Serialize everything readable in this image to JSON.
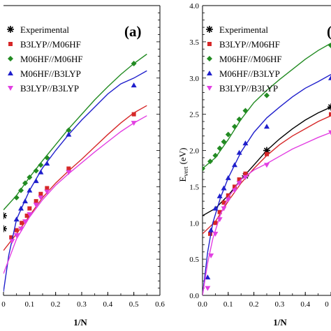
{
  "chart_data": [
    {
      "type": "line",
      "panel_label": "(a)",
      "title": "",
      "xlabel": "1/N",
      "ylabel": "",
      "xlim": [
        0,
        0.6
      ],
      "ylim": [
        0,
        4.0
      ],
      "x_ticks": [
        "0",
        "0.1",
        "0.2",
        "0.3",
        "0.4",
        "0.5",
        "0.6"
      ],
      "y_ticks": [],
      "legend_position": "top-left",
      "grid": false,
      "series": [
        {
          "name": "Experimental",
          "marker": "asterisk",
          "color": "#000000",
          "points": [
            [
              0.0,
              1.1
            ],
            [
              0.0,
              0.92
            ]
          ],
          "curve": []
        },
        {
          "name": "B3LYP//M06HF",
          "marker": "square",
          "color": "#d62728",
          "points": [
            [
              0.03,
              0.8
            ],
            [
              0.05,
              0.9
            ],
            [
              0.07,
              1.0
            ],
            [
              0.09,
              1.1
            ],
            [
              0.1,
              1.2
            ],
            [
              0.125,
              1.3
            ],
            [
              0.143,
              1.4
            ],
            [
              0.167,
              1.48
            ],
            [
              0.25,
              1.75
            ],
            [
              0.5,
              2.5
            ]
          ],
          "curve": [
            [
              0.0,
              0.62
            ],
            [
              0.05,
              0.85
            ],
            [
              0.1,
              1.1
            ],
            [
              0.15,
              1.35
            ],
            [
              0.2,
              1.55
            ],
            [
              0.25,
              1.72
            ],
            [
              0.3,
              1.88
            ],
            [
              0.35,
              2.05
            ],
            [
              0.4,
              2.22
            ],
            [
              0.45,
              2.38
            ],
            [
              0.5,
              2.52
            ],
            [
              0.55,
              2.62
            ]
          ]
        },
        {
          "name": "M06HF//M06HF",
          "marker": "diamond",
          "color": "#228b22",
          "points": [
            [
              0.05,
              1.35
            ],
            [
              0.067,
              1.45
            ],
            [
              0.083,
              1.55
            ],
            [
              0.1,
              1.63
            ],
            [
              0.125,
              1.72
            ],
            [
              0.143,
              1.8
            ],
            [
              0.167,
              1.9
            ],
            [
              0.25,
              2.28
            ],
            [
              0.5,
              3.2
            ]
          ],
          "curve": [
            [
              0.0,
              1.18
            ],
            [
              0.05,
              1.38
            ],
            [
              0.1,
              1.63
            ],
            [
              0.15,
              1.86
            ],
            [
              0.2,
              2.08
            ],
            [
              0.25,
              2.3
            ],
            [
              0.3,
              2.5
            ],
            [
              0.35,
              2.7
            ],
            [
              0.4,
              2.88
            ],
            [
              0.45,
              3.05
            ],
            [
              0.5,
              3.2
            ],
            [
              0.55,
              3.33
            ]
          ]
        },
        {
          "name": "M06HF//B3LYP",
          "marker": "triangle",
          "color": "#1f1fcc",
          "points": [
            [
              0.05,
              1.05
            ],
            [
              0.067,
              1.2
            ],
            [
              0.083,
              1.3
            ],
            [
              0.1,
              1.45
            ],
            [
              0.125,
              1.58
            ],
            [
              0.143,
              1.7
            ],
            [
              0.167,
              1.82
            ],
            [
              0.25,
              2.22
            ],
            [
              0.5,
              2.9
            ]
          ],
          "curve": [
            [
              0.0,
              0.05
            ],
            [
              0.02,
              0.55
            ],
            [
              0.05,
              1.05
            ],
            [
              0.1,
              1.45
            ],
            [
              0.15,
              1.76
            ],
            [
              0.2,
              2.0
            ],
            [
              0.25,
              2.22
            ],
            [
              0.3,
              2.42
            ],
            [
              0.35,
              2.6
            ],
            [
              0.4,
              2.78
            ],
            [
              0.45,
              2.92
            ],
            [
              0.5,
              3.0
            ],
            [
              0.55,
              3.1
            ]
          ]
        },
        {
          "name": "B3LYP//B3LYP",
          "marker": "inverted-triangle",
          "color": "#e23fe2",
          "points": [
            [
              0.033,
              0.75
            ],
            [
              0.05,
              0.83
            ],
            [
              0.067,
              0.92
            ],
            [
              0.083,
              1.02
            ],
            [
              0.1,
              1.12
            ],
            [
              0.125,
              1.25
            ],
            [
              0.143,
              1.35
            ],
            [
              0.167,
              1.43
            ],
            [
              0.25,
              1.7
            ],
            [
              0.5,
              2.38
            ]
          ],
          "curve": [
            [
              0.0,
              0.3
            ],
            [
              0.05,
              0.78
            ],
            [
              0.1,
              1.08
            ],
            [
              0.15,
              1.32
            ],
            [
              0.2,
              1.52
            ],
            [
              0.25,
              1.68
            ],
            [
              0.3,
              1.83
            ],
            [
              0.35,
              1.98
            ],
            [
              0.4,
              2.12
            ],
            [
              0.45,
              2.26
            ],
            [
              0.5,
              2.38
            ],
            [
              0.55,
              2.48
            ]
          ]
        }
      ]
    },
    {
      "type": "line",
      "panel_label": "(",
      "title": "",
      "xlabel": "1/N",
      "ylabel": "E",
      "ylabel_sub": "vert",
      "ylabel_unit": " (eV)",
      "xlim": [
        0,
        0.5
      ],
      "ylim": [
        0,
        4.0
      ],
      "x_ticks": [
        "0.0",
        "0.1",
        "0.2",
        "0.3",
        "0.4",
        "0"
      ],
      "y_ticks": [
        "0.0",
        "0.5",
        "1.0",
        "1.5",
        "2.0",
        "2.5",
        "3.0",
        "3.5",
        "4.0"
      ],
      "legend_position": "top-left",
      "grid": false,
      "series": [
        {
          "name": "Experimental",
          "marker": "asterisk",
          "color": "#000000",
          "points": [
            [
              0.167,
              1.65
            ],
            [
              0.25,
              2.0
            ],
            [
              0.5,
              2.6
            ]
          ],
          "curve": [
            [
              0.0,
              1.1
            ],
            [
              0.05,
              1.2
            ],
            [
              0.1,
              1.38
            ],
            [
              0.15,
              1.6
            ],
            [
              0.2,
              1.8
            ],
            [
              0.25,
              2.0
            ],
            [
              0.3,
              2.16
            ],
            [
              0.35,
              2.3
            ],
            [
              0.4,
              2.42
            ],
            [
              0.45,
              2.52
            ],
            [
              0.5,
              2.6
            ]
          ]
        },
        {
          "name": "B3LYP//M06HF",
          "marker": "square",
          "color": "#d62728",
          "points": [
            [
              0.03,
              0.85
            ],
            [
              0.05,
              1.0
            ],
            [
              0.067,
              1.15
            ],
            [
              0.083,
              1.28
            ],
            [
              0.1,
              1.38
            ],
            [
              0.125,
              1.5
            ],
            [
              0.143,
              1.6
            ],
            [
              0.167,
              1.68
            ],
            [
              0.25,
              1.95
            ],
            [
              0.5,
              2.5
            ]
          ],
          "curve": [
            [
              0.0,
              0.85
            ],
            [
              0.05,
              1.02
            ],
            [
              0.1,
              1.3
            ],
            [
              0.15,
              1.55
            ],
            [
              0.2,
              1.75
            ],
            [
              0.25,
              1.93
            ],
            [
              0.3,
              2.08
            ],
            [
              0.35,
              2.2
            ],
            [
              0.4,
              2.3
            ],
            [
              0.45,
              2.4
            ],
            [
              0.5,
              2.48
            ]
          ]
        },
        {
          "name": "M06HF//M06HF",
          "marker": "diamond",
          "color": "#228b22",
          "points": [
            [
              0.0,
              1.75
            ],
            [
              0.03,
              1.85
            ],
            [
              0.05,
              1.93
            ],
            [
              0.067,
              2.03
            ],
            [
              0.083,
              2.12
            ],
            [
              0.1,
              2.22
            ],
            [
              0.125,
              2.33
            ],
            [
              0.143,
              2.43
            ],
            [
              0.167,
              2.55
            ],
            [
              0.25,
              2.76
            ],
            [
              0.5,
              3.45
            ]
          ],
          "curve": [
            [
              0.0,
              1.75
            ],
            [
              0.05,
              1.9
            ],
            [
              0.1,
              2.15
            ],
            [
              0.15,
              2.43
            ],
            [
              0.2,
              2.66
            ],
            [
              0.25,
              2.83
            ],
            [
              0.3,
              2.98
            ],
            [
              0.35,
              3.12
            ],
            [
              0.4,
              3.26
            ],
            [
              0.45,
              3.38
            ],
            [
              0.5,
              3.48
            ]
          ]
        },
        {
          "name": "M06HF//B3LYP",
          "marker": "triangle",
          "color": "#1f1fcc",
          "points": [
            [
              0.02,
              0.25
            ],
            [
              0.033,
              0.9
            ],
            [
              0.05,
              1.2
            ],
            [
              0.067,
              1.37
            ],
            [
              0.083,
              1.48
            ],
            [
              0.1,
              1.62
            ],
            [
              0.125,
              1.8
            ],
            [
              0.143,
              1.97
            ],
            [
              0.167,
              2.1
            ],
            [
              0.25,
              2.33
            ],
            [
              0.5,
              3.0
            ]
          ],
          "curve": [
            [
              0.0,
              0.0
            ],
            [
              0.02,
              0.6
            ],
            [
              0.04,
              1.0
            ],
            [
              0.07,
              1.35
            ],
            [
              0.1,
              1.62
            ],
            [
              0.15,
              1.98
            ],
            [
              0.2,
              2.25
            ],
            [
              0.25,
              2.45
            ],
            [
              0.3,
              2.6
            ],
            [
              0.35,
              2.74
            ],
            [
              0.4,
              2.86
            ],
            [
              0.45,
              2.95
            ],
            [
              0.5,
              3.05
            ]
          ]
        },
        {
          "name": "B3LYP//B3LYP",
          "marker": "inverted-triangle",
          "color": "#e23fe2",
          "points": [
            [
              0.02,
              0.1
            ],
            [
              0.033,
              0.55
            ],
            [
              0.05,
              0.85
            ],
            [
              0.067,
              1.05
            ],
            [
              0.083,
              1.2
            ],
            [
              0.1,
              1.32
            ],
            [
              0.125,
              1.45
            ],
            [
              0.143,
              1.55
            ],
            [
              0.167,
              1.63
            ],
            [
              0.25,
              1.8
            ],
            [
              0.5,
              2.25
            ]
          ],
          "curve": [
            [
              0.0,
              0.0
            ],
            [
              0.02,
              0.45
            ],
            [
              0.04,
              0.78
            ],
            [
              0.07,
              1.12
            ],
            [
              0.1,
              1.35
            ],
            [
              0.15,
              1.6
            ],
            [
              0.2,
              1.73
            ],
            [
              0.25,
              1.82
            ],
            [
              0.3,
              1.92
            ],
            [
              0.35,
              2.02
            ],
            [
              0.4,
              2.1
            ],
            [
              0.45,
              2.18
            ],
            [
              0.5,
              2.25
            ]
          ]
        }
      ]
    }
  ]
}
